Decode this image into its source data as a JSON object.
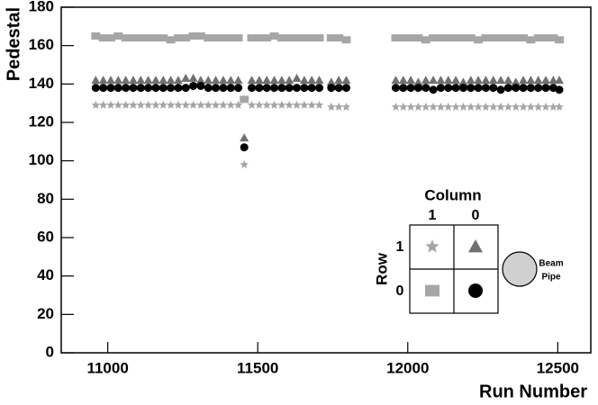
{
  "chart_data": {
    "type": "scatter",
    "x_label": "Run Number",
    "y_label": "Pedestal",
    "xlim": [
      10845,
      12610
    ],
    "ylim": [
      0,
      180
    ],
    "xticks": [
      11000,
      11500,
      12000,
      12500
    ],
    "yticks": [
      0,
      20,
      40,
      60,
      80,
      100,
      120,
      140,
      160,
      180
    ],
    "x": [
      10960,
      10985,
      11010,
      11035,
      11060,
      11085,
      11110,
      11135,
      11160,
      11185,
      11210,
      11235,
      11260,
      11285,
      11310,
      11335,
      11360,
      11385,
      11410,
      11435,
      11455,
      11480,
      11505,
      11530,
      11555,
      11580,
      11605,
      11630,
      11655,
      11680,
      11705,
      11745,
      11770,
      11795,
      11960,
      11985,
      12010,
      12035,
      12060,
      12085,
      12110,
      12135,
      12160,
      12185,
      12210,
      12235,
      12260,
      12285,
      12310,
      12335,
      12360,
      12385,
      12410,
      12435,
      12460,
      12485,
      12505
    ],
    "series": [
      {
        "marker": "square",
        "color": "#a6a6a6",
        "values": [
          165,
          164,
          164,
          165,
          164,
          164,
          164,
          164,
          164,
          164,
          163,
          164,
          164,
          165,
          165,
          164,
          164,
          164,
          164,
          164,
          132,
          164,
          164,
          164,
          165,
          164,
          164,
          164,
          164,
          164,
          164,
          164,
          164,
          163,
          164,
          164,
          164,
          164,
          163,
          164,
          164,
          164,
          164,
          164,
          164,
          163,
          164,
          164,
          164,
          164,
          164,
          164,
          163,
          164,
          164,
          164,
          163
        ]
      },
      {
        "marker": "triangle",
        "color": "#707070",
        "values": [
          142,
          142,
          142,
          142,
          142,
          142,
          142,
          142,
          142,
          142,
          142,
          142,
          143,
          143,
          142,
          142,
          142,
          142,
          142,
          142,
          112,
          142,
          142,
          142,
          142,
          142,
          142,
          143,
          142,
          142,
          142,
          141,
          142,
          142,
          142,
          142,
          142,
          141,
          142,
          142,
          142,
          142,
          142,
          141,
          142,
          142,
          142,
          142,
          142,
          142,
          141,
          142,
          142,
          142,
          142,
          142,
          142
        ]
      },
      {
        "marker": "circle",
        "color": "#000000",
        "values": [
          138,
          138,
          138,
          138,
          138,
          138,
          138,
          138,
          138,
          138,
          138,
          138,
          138,
          139,
          139,
          138,
          138,
          138,
          138,
          138,
          107,
          138,
          138,
          138,
          138,
          138,
          138,
          138,
          138,
          138,
          138,
          138,
          138,
          138,
          138,
          138,
          138,
          138,
          138,
          137,
          138,
          138,
          138,
          138,
          138,
          138,
          138,
          138,
          137,
          138,
          138,
          138,
          138,
          138,
          138,
          138,
          137
        ]
      },
      {
        "marker": "star",
        "color": "#a6a6a6",
        "values": [
          129,
          129,
          129,
          129,
          129,
          129,
          129,
          129,
          129,
          129,
          129,
          129,
          129,
          129,
          129,
          129,
          129,
          129,
          129,
          129,
          98,
          129,
          129,
          129,
          129,
          129,
          129,
          129,
          129,
          129,
          129,
          128,
          128,
          128,
          128,
          128,
          128,
          128,
          128,
          128,
          128,
          128,
          128,
          128,
          128,
          128,
          128,
          128,
          128,
          128,
          128,
          128,
          128,
          128,
          128,
          128,
          128
        ]
      }
    ],
    "inset": {
      "column_title": "Column",
      "column_labels": [
        "1",
        "0"
      ],
      "row_title": "Row",
      "row_labels": [
        "1",
        "0"
      ],
      "beam_pipe": [
        "Beam",
        "Pipe"
      ]
    }
  }
}
